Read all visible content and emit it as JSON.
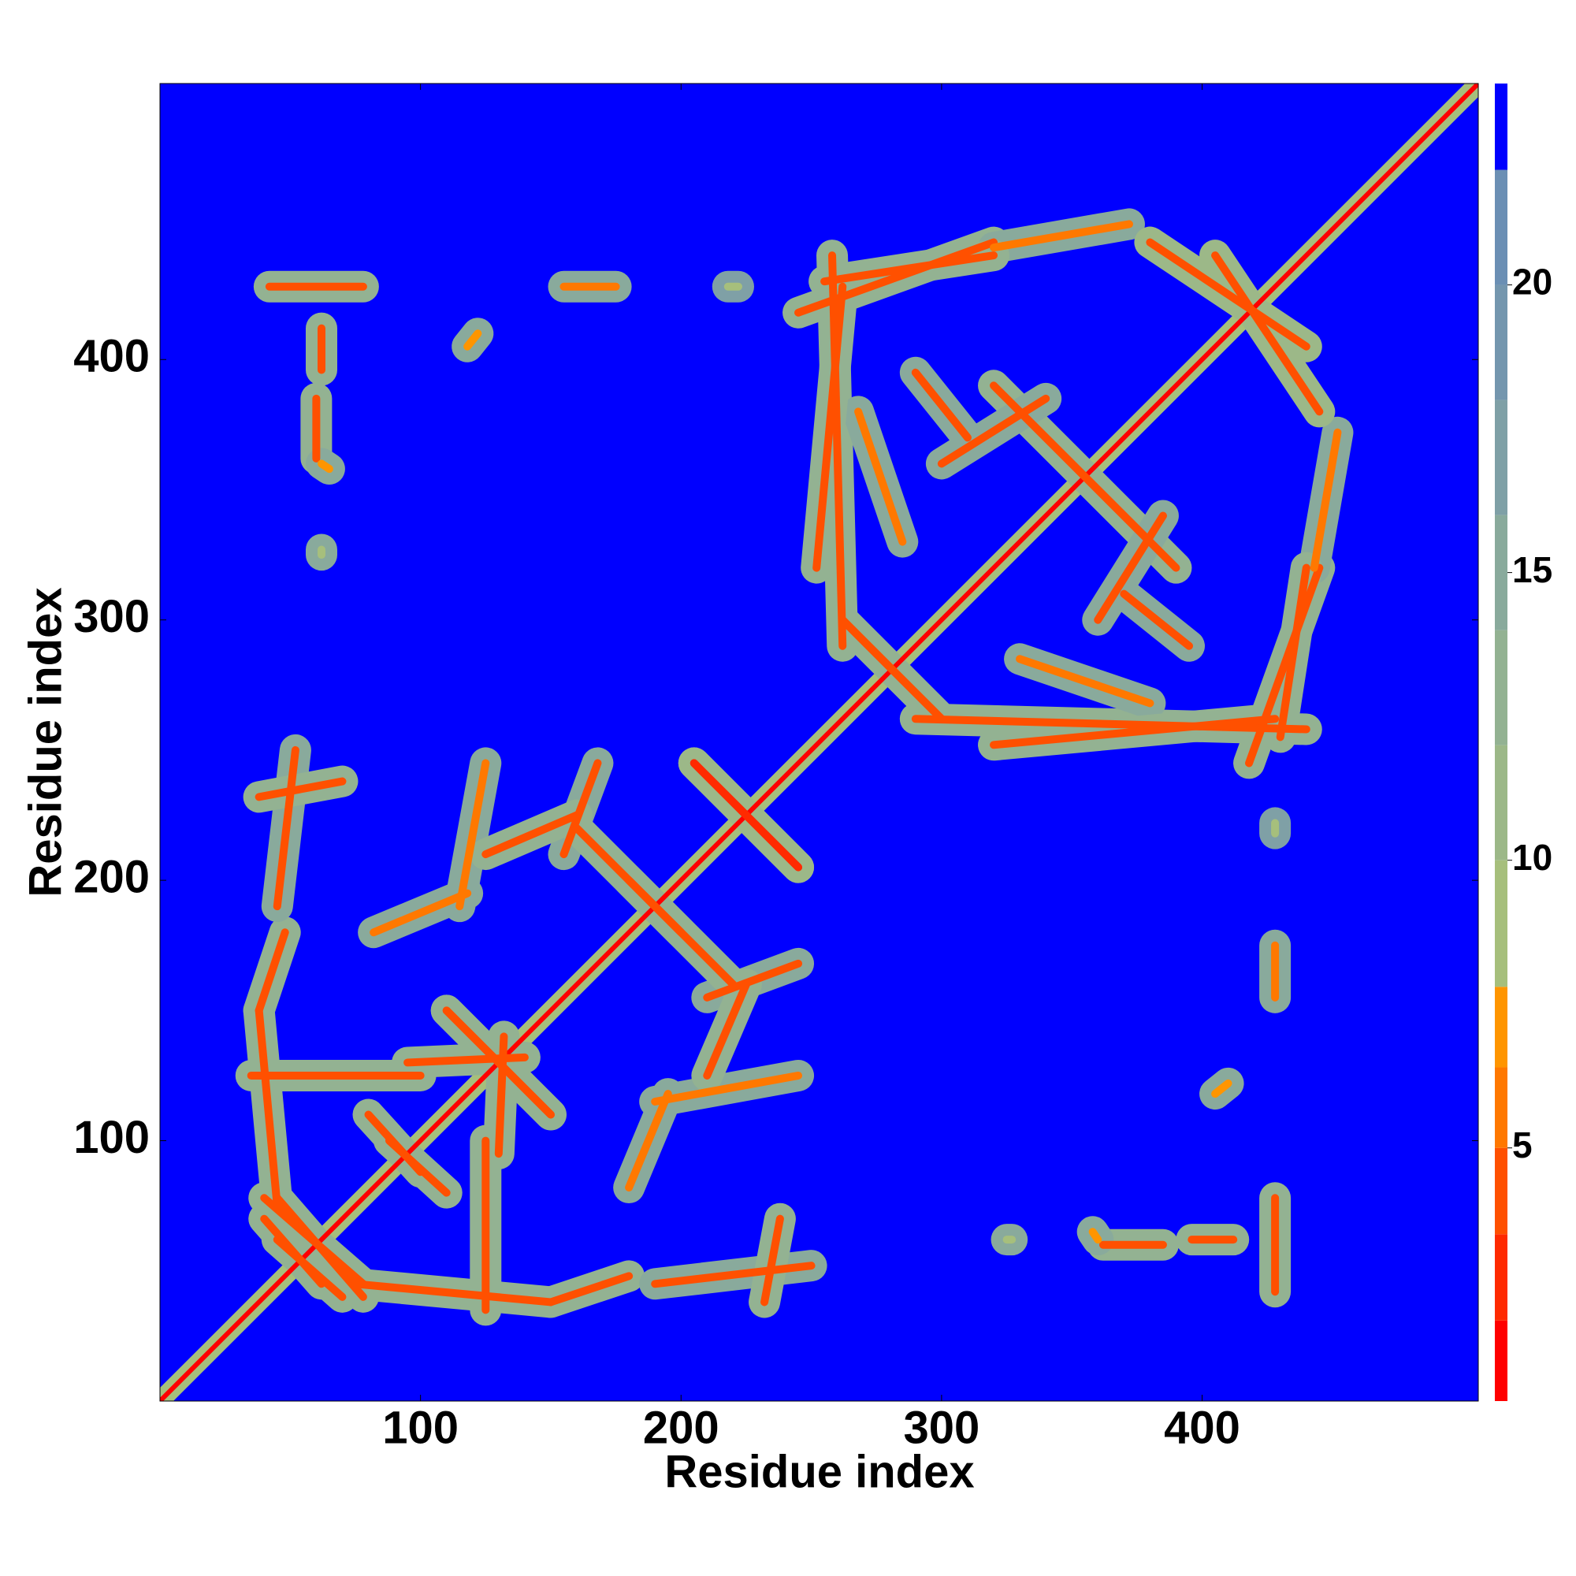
{
  "chart_data": {
    "type": "contact-map",
    "xlabel": "Residue index",
    "ylabel": "Residue index",
    "xlim": [
      0,
      506
    ],
    "ylim": [
      0,
      506
    ],
    "xticks": [
      100,
      200,
      300,
      400
    ],
    "yticks": [
      100,
      200,
      300,
      400
    ],
    "symmetric": true,
    "background_value": 23,
    "features": [
      [
        0,
        0,
        506,
        506,
        1,
        9
      ],
      [
        40,
        70,
        62,
        45,
        4,
        13
      ],
      [
        45,
        78,
        78,
        40,
        5,
        13
      ],
      [
        75,
        45,
        150,
        38,
        5,
        14
      ],
      [
        150,
        38,
        180,
        48,
        5,
        14
      ],
      [
        125,
        35,
        125,
        100,
        5,
        14
      ],
      [
        190,
        45,
        250,
        52,
        5,
        15
      ],
      [
        232,
        38,
        238,
        70,
        4,
        14
      ],
      [
        180,
        82,
        195,
        118,
        6,
        15
      ],
      [
        190,
        115,
        245,
        125,
        6,
        16
      ],
      [
        210,
        155,
        245,
        168,
        5,
        15
      ],
      [
        110,
        150,
        150,
        110,
        4,
        13
      ],
      [
        95,
        130,
        140,
        132,
        5,
        14
      ],
      [
        160,
        220,
        200,
        180,
        4,
        13
      ],
      [
        205,
        245,
        245,
        205,
        3,
        12
      ],
      [
        125,
        210,
        160,
        225,
        5,
        14
      ],
      [
        80,
        110,
        100,
        88,
        4,
        13
      ],
      [
        262,
        300,
        300,
        262,
        4,
        13
      ],
      [
        290,
        262,
        440,
        258,
        5,
        14
      ],
      [
        330,
        285,
        380,
        268,
        6,
        15
      ],
      [
        418,
        245,
        445,
        320,
        4,
        13
      ],
      [
        443,
        320,
        452,
        372,
        6,
        15
      ],
      [
        320,
        390,
        380,
        330,
        4,
        13
      ],
      [
        255,
        430,
        320,
        440,
        5,
        14
      ],
      [
        380,
        445,
        440,
        405,
        4,
        12
      ],
      [
        252,
        320,
        262,
        428,
        5,
        14
      ],
      [
        300,
        360,
        340,
        385,
        5,
        15
      ],
      [
        370,
        310,
        395,
        290,
        5,
        15
      ],
      [
        362,
        60,
        385,
        60,
        4,
        13
      ],
      [
        396,
        62,
        412,
        62,
        5,
        13
      ],
      [
        428,
        42,
        428,
        78,
        4,
        13
      ],
      [
        428,
        155,
        428,
        175,
        6,
        15
      ],
      [
        405,
        118,
        410,
        122,
        7,
        16
      ],
      [
        325,
        62,
        327,
        62,
        8,
        16
      ],
      [
        358,
        65,
        360,
        62,
        7,
        16
      ],
      [
        428,
        218,
        428,
        222,
        8,
        17
      ]
    ],
    "colorbar": {
      "clim": [
        0.6,
        23.5
      ],
      "ticks": [
        5,
        10,
        15,
        20
      ],
      "levels": [
        0.6,
        2,
        3.5,
        5,
        6.4,
        7.8,
        10,
        12,
        14,
        16,
        18,
        20,
        22,
        23.5
      ],
      "colors": [
        "#ff0000",
        "#ff2a00",
        "#ff5000",
        "#ff7800",
        "#ff9500",
        "#a6bf7c",
        "#9cb888",
        "#93b292",
        "#89aa9c",
        "#7fa0a6",
        "#7496ae",
        "#6b8fb4",
        "#0000ff"
      ]
    }
  }
}
